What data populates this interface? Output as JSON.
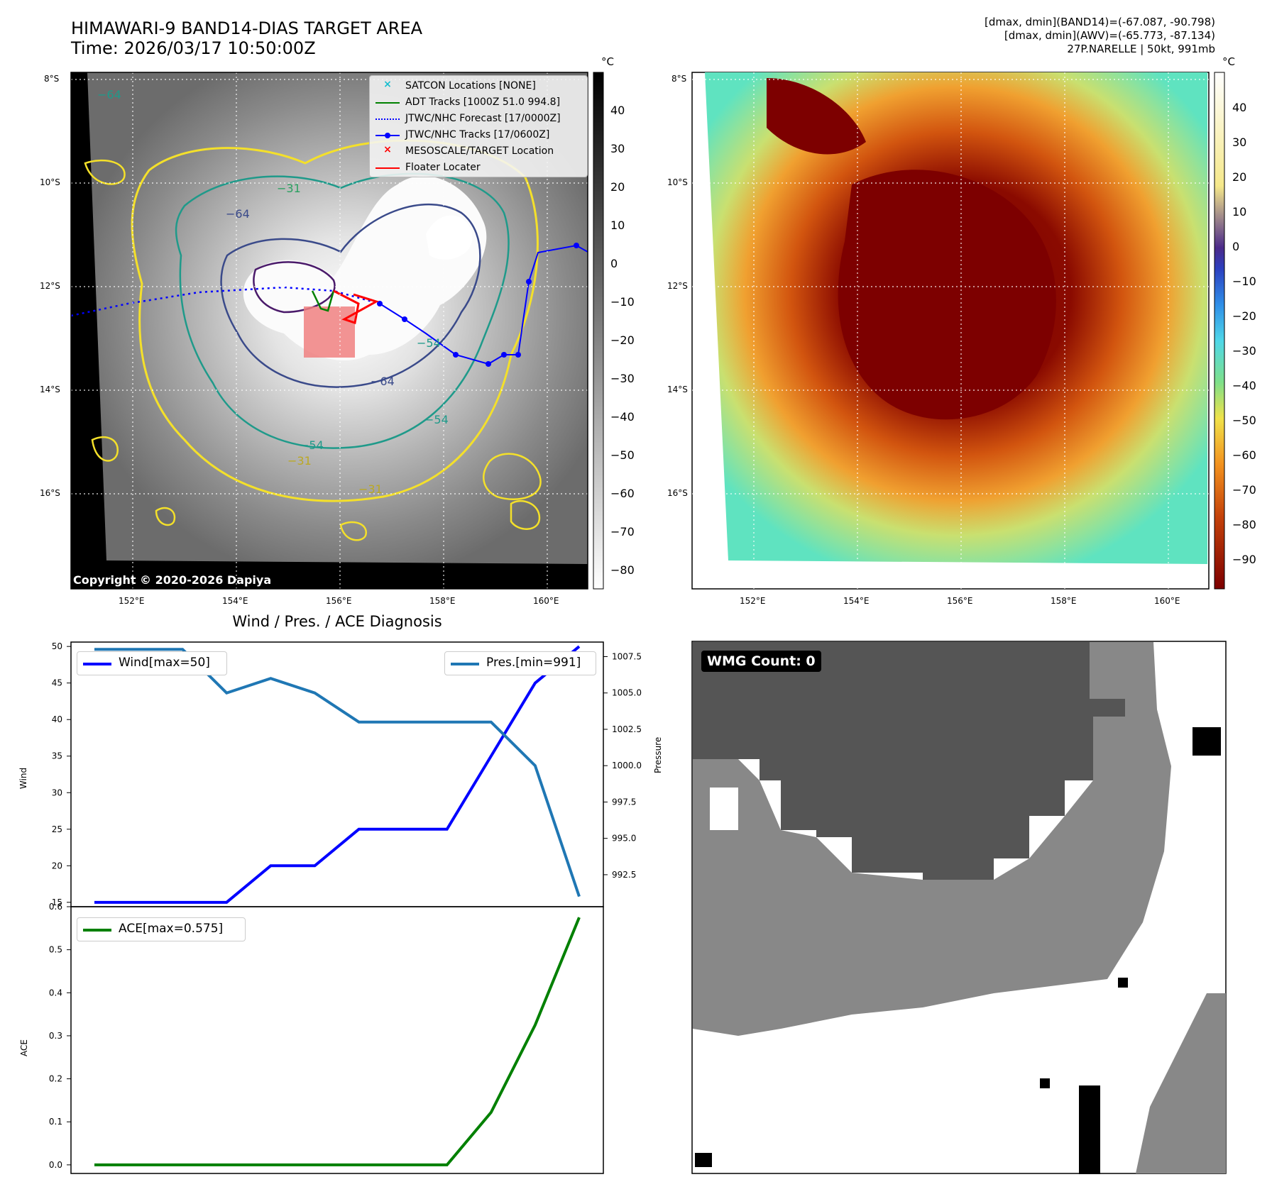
{
  "header": {
    "title_line1": "HIMAWARI-9 BAND14-DIAS TARGET AREA",
    "title_line2": "Time: 2026/03/17 10:50:00Z",
    "stats_line1": "[dmax, dmin](BAND14)=(-67.087, -90.798)",
    "stats_line2": "[dmax, dmin](AWV)=(-65.773, -87.134)",
    "stats_line3": "27P.NARELLE | 50kt, 991mb"
  },
  "map_left": {
    "copyright": "Copyright © 2020-2026 Dapiya",
    "lat_labels": [
      "8°S",
      "10°S",
      "12°S",
      "14°S",
      "16°S"
    ],
    "lon_labels": [
      "152°E",
      "154°E",
      "156°E",
      "158°E",
      "160°E"
    ],
    "colorbar_unit": "°C",
    "colorbar_ticks": [
      "40",
      "30",
      "20",
      "10",
      "0",
      "−10",
      "−20",
      "−30",
      "−40",
      "−50",
      "−60",
      "−70",
      "−80"
    ],
    "contour_labels": [
      "−64",
      "−54",
      "−31",
      "−64",
      "−54",
      "−54",
      "−31",
      "−31",
      "−64"
    ],
    "legend": [
      {
        "label": "SATCON Locations [NONE]",
        "color": "#17becf",
        "symbol": "x-marker"
      },
      {
        "label": "ADT Tracks [1000Z 51.0 994.8]",
        "color": "#008000",
        "symbol": "line"
      },
      {
        "label": "JTWC/NHC Forecast [17/0000Z]",
        "color": "#0000ff",
        "symbol": "dotted-line"
      },
      {
        "label": "JTWC/NHC Tracks [17/0600Z]",
        "color": "#0000ff",
        "symbol": "line-dot"
      },
      {
        "label": "MESOSCALE/TARGET Location",
        "color": "#ff0000",
        "symbol": "x-marker"
      },
      {
        "label": "Floater Locater",
        "color": "#ff0000",
        "symbol": "line"
      }
    ]
  },
  "map_right": {
    "lat_labels": [
      "8°S",
      "10°S",
      "12°S",
      "14°S",
      "16°S"
    ],
    "lon_labels": [
      "152°E",
      "154°E",
      "156°E",
      "158°E",
      "160°E"
    ],
    "colorbar_unit": "°C",
    "colorbar_ticks": [
      "40",
      "30",
      "20",
      "10",
      "0",
      "−10",
      "−20",
      "−30",
      "−40",
      "−50",
      "−60",
      "−70",
      "−80",
      "−90"
    ]
  },
  "wmg": {
    "label": "WMG Count: 0"
  },
  "diagnosis": {
    "title": "Wind / Pres. / ACE Diagnosis",
    "wind_axis_label": "Wind",
    "pressure_axis_label": "Pressure",
    "ace_axis_label": "ACE",
    "wind_legend": "Wind[max=50]",
    "pressure_legend": "Pres.[min=991]",
    "ace_legend": "ACE[max=0.575]",
    "wind_ticks": [
      "50",
      "45",
      "40",
      "35",
      "30",
      "25",
      "20",
      "15"
    ],
    "pressure_ticks": [
      "1007.5",
      "1005.0",
      "1002.5",
      "1000.0",
      "997.5",
      "995.0",
      "992.5"
    ],
    "ace_ticks": [
      "0.6",
      "0.5",
      "0.4",
      "0.3",
      "0.2",
      "0.1",
      "0.0"
    ],
    "colors": {
      "wind": "#0000ff",
      "pressure": "#1f77b4",
      "ace": "#008000"
    }
  },
  "chart_data": [
    {
      "type": "line",
      "title": "Wind / Pres. / ACE Diagnosis",
      "x": [
        0,
        1,
        2,
        3,
        4,
        5,
        6,
        7,
        8,
        9,
        10,
        11
      ],
      "series": [
        {
          "name": "Wind[max=50]",
          "axis": "left",
          "values": [
            15,
            15,
            15,
            15,
            20,
            20,
            25,
            25,
            25,
            35,
            45,
            50
          ]
        },
        {
          "name": "Pres.[min=991]",
          "axis": "right",
          "values": [
            1008,
            1008,
            1008,
            1005,
            1006,
            1005,
            1003,
            1003,
            1003,
            1003,
            1000,
            991
          ]
        }
      ],
      "ylabel": "Wind",
      "y2label": "Pressure",
      "ylim": [
        14.4,
        50.6
      ],
      "y2lim": [
        990.3,
        1008.5
      ],
      "grid": false
    },
    {
      "type": "line",
      "x": [
        0,
        1,
        2,
        3,
        4,
        5,
        6,
        7,
        8,
        9,
        10,
        11
      ],
      "series": [
        {
          "name": "ACE[max=0.575]",
          "values": [
            0,
            0,
            0,
            0,
            0,
            0,
            0,
            0,
            0,
            0.122,
            0.325,
            0.575
          ]
        }
      ],
      "ylabel": "ACE",
      "ylim": [
        -0.02,
        0.6
      ],
      "grid": false
    }
  ]
}
